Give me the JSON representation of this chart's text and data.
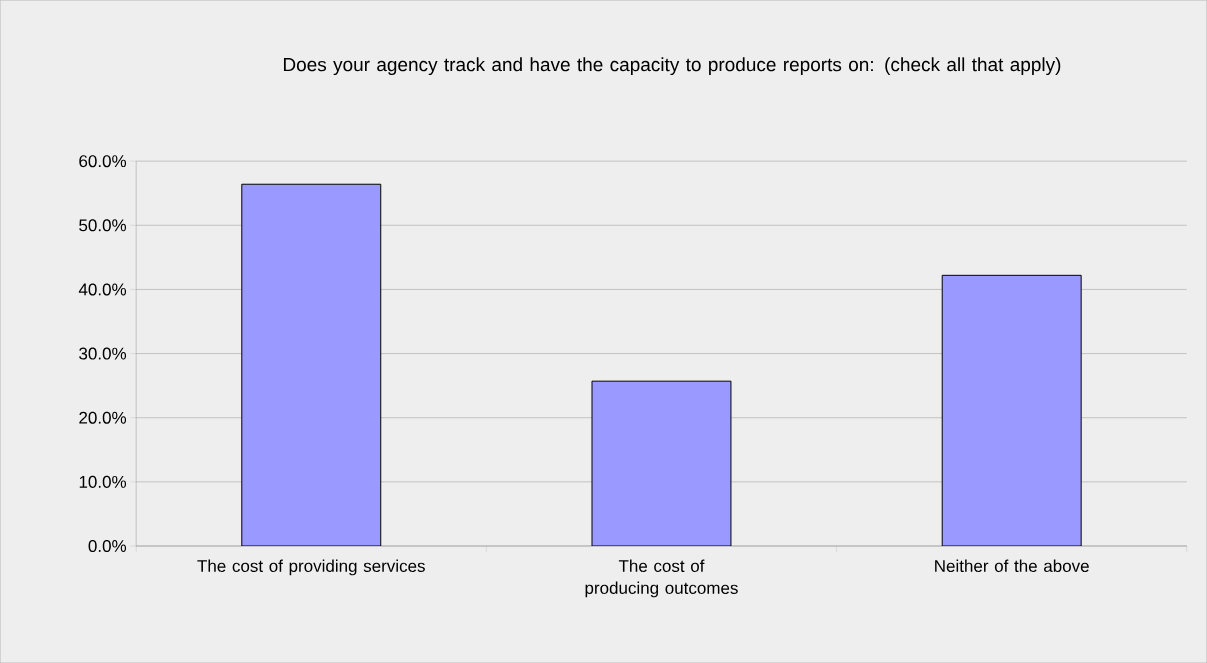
{
  "chart_data": {
    "type": "bar",
    "title": "Does your agency track and have the capacity to produce reports on: (check all that apply)",
    "categories": [
      "The cost of providing services",
      "The cost of producing outcomes",
      "Neither of the above"
    ],
    "values": [
      56.4,
      25.7,
      42.2
    ],
    "color": "#9999ff",
    "ylim": [
      0,
      60
    ],
    "yticks": [
      {
        "value": 0,
        "label": "0.0%"
      },
      {
        "value": 10,
        "label": "10.0%"
      },
      {
        "value": 20,
        "label": "20.0%"
      },
      {
        "value": 30,
        "label": "30.0%"
      },
      {
        "value": 40,
        "label": "40.0%"
      },
      {
        "value": 50,
        "label": "50.0%"
      },
      {
        "value": 60,
        "label": "60.0%"
      }
    ],
    "grid": "y"
  }
}
